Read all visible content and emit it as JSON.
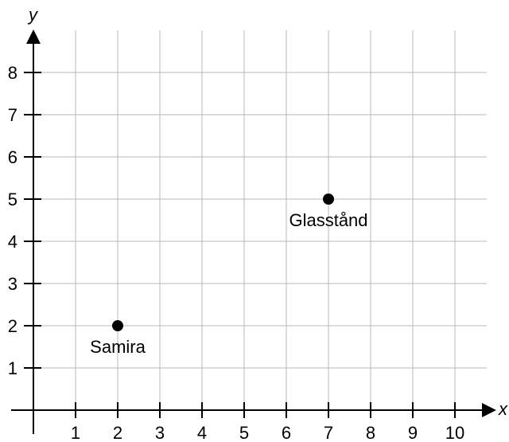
{
  "chart_data": {
    "type": "scatter",
    "xlabel": "x",
    "ylabel": "y",
    "xlim": [
      0,
      10
    ],
    "ylim": [
      0,
      8
    ],
    "x_ticks": [
      "1",
      "2",
      "3",
      "4",
      "5",
      "6",
      "7",
      "8",
      "9",
      "10"
    ],
    "y_ticks": [
      "1",
      "2",
      "3",
      "4",
      "5",
      "6",
      "7",
      "8"
    ],
    "grid": true,
    "points": [
      {
        "label": "Samira",
        "x": 2,
        "y": 2
      },
      {
        "label": "Glasstånd",
        "x": 7,
        "y": 5
      }
    ],
    "colors": {
      "grid": "#b8b8b8",
      "axis": "#000000",
      "point": "#000000"
    }
  }
}
